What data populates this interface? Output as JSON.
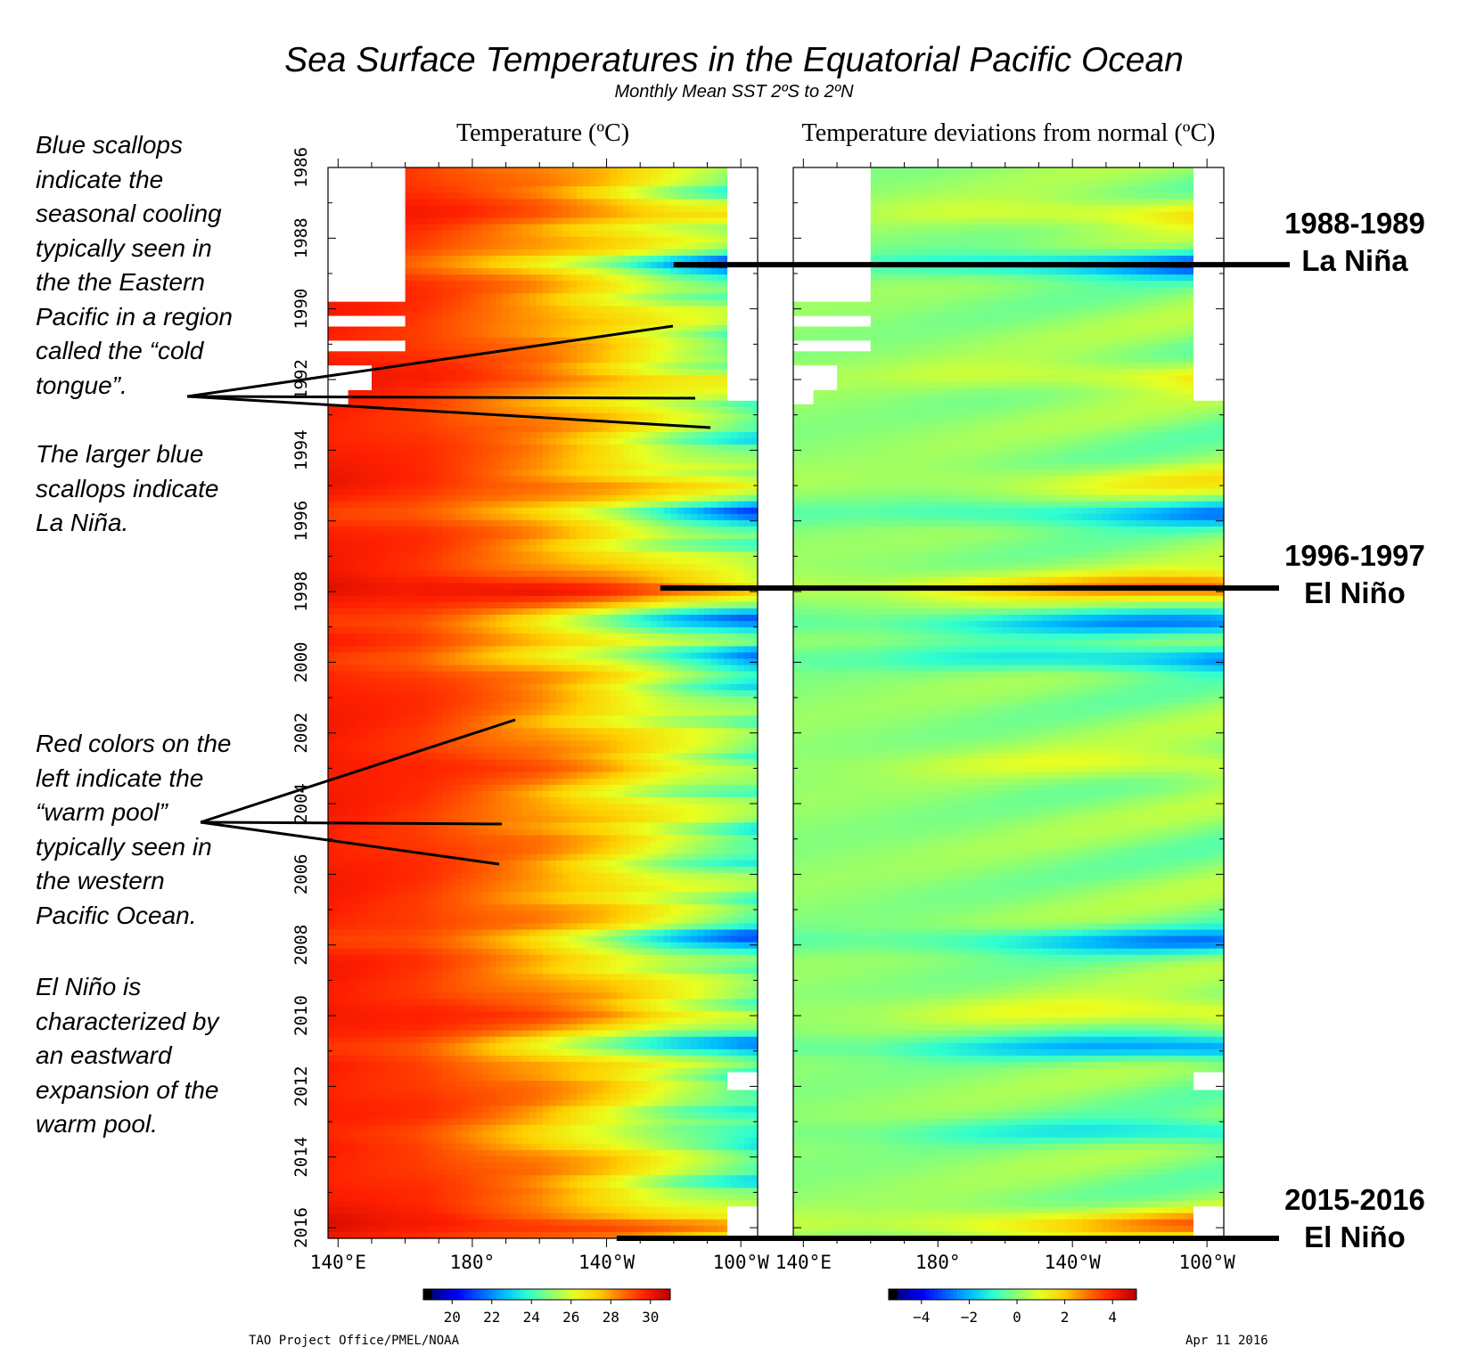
{
  "title": "Sea Surface Temperatures in the Equatorial Pacific Ocean",
  "subtitle": "Monthly Mean SST 2ºS to 2ºN",
  "notes": {
    "cold_tongue": [
      "Blue scallops",
      "indicate the",
      "seasonal cooling",
      "typically seen in",
      "the the Eastern",
      "Pacific in a region",
      "called the “cold",
      "tongue”."
    ],
    "la_nina": [
      "The larger blue",
      "scallops indicate",
      "La Niña."
    ],
    "warm_pool": [
      "Red colors on the",
      "left indicate the",
      "“warm pool”",
      "typically seen in",
      "the western",
      "Pacific Ocean."
    ],
    "el_nino": [
      "El Niño is",
      "characterized by",
      "an eastward",
      "expansion of the",
      "warm pool."
    ]
  },
  "events": [
    {
      "years": "1988-1989",
      "name": "La Niña",
      "year_value": 1988.75
    },
    {
      "years": "1996-1997",
      "name": "El Niño",
      "year_value": 1997.9
    },
    {
      "years": "2015-2016",
      "name": "El Niño",
      "year_value": 2016.3
    }
  ],
  "credit_left": "TAO Project Office/PMEL/NOAA",
  "credit_right": "Apr 11 2016",
  "colors": {
    "scale": [
      "#000000",
      "#00008f",
      "#0000ff",
      "#0060ff",
      "#00bfff",
      "#30ffcf",
      "#90ff70",
      "#e8ff20",
      "#ffd000",
      "#ff7000",
      "#ff2000",
      "#c00000"
    ],
    "annotation_line": "#000000"
  },
  "chart_data": [
    {
      "type": "heatmap",
      "title": "Temperature (ºC)",
      "x_ticks": [
        "140°E",
        "180°",
        "140°W",
        "100°W"
      ],
      "x_tick_values": [
        140,
        180,
        220,
        260
      ],
      "xlim": [
        137,
        265
      ],
      "y_ticks": [
        "1986",
        "1988",
        "1990",
        "1992",
        "1994",
        "1996",
        "1998",
        "2000",
        "2002",
        "2004",
        "2006",
        "2008",
        "2010",
        "2012",
        "2014",
        "2016"
      ],
      "ylim": [
        1986,
        2016.3
      ],
      "colorbar_ticks": [
        "20",
        "22",
        "24",
        "26",
        "28",
        "30"
      ],
      "colorbar_range": [
        19,
        31
      ],
      "base_profile": {
        "lon": [
          137,
          165,
          180,
          200,
          220,
          240,
          265
        ],
        "value": [
          29.9,
          29.5,
          29.0,
          28.3,
          27.3,
          26.0,
          24.8
        ]
      },
      "cold_events": [
        {
          "year": 1988.75,
          "amp": 2.6
        },
        {
          "year": 1995.8,
          "amp": 1.8
        },
        {
          "year": 1998.9,
          "amp": 2.2
        },
        {
          "year": 1999.9,
          "amp": 2.0
        },
        {
          "year": 2007.9,
          "amp": 2.0
        },
        {
          "year": 2010.9,
          "amp": 2.2
        },
        {
          "year": 2013.3,
          "amp": 1.4
        }
      ],
      "warm_events": [
        {
          "year": 1987.3,
          "amp": 1.4
        },
        {
          "year": 1991.9,
          "amp": 1.2
        },
        {
          "year": 1994.9,
          "amp": 1.0
        },
        {
          "year": 1997.9,
          "amp": 2.8
        },
        {
          "year": 2002.9,
          "amp": 1.0
        },
        {
          "year": 2009.9,
          "amp": 1.2
        },
        {
          "year": 2015.9,
          "amp": 2.4
        }
      ]
    },
    {
      "type": "heatmap",
      "title": "Temperature deviations from normal (ºC)",
      "x_ticks": [
        "140°E",
        "180°",
        "140°W",
        "100°W"
      ],
      "x_tick_values": [
        140,
        180,
        220,
        260
      ],
      "xlim": [
        137,
        265
      ],
      "y_ticks": [
        "1986",
        "1988",
        "1990",
        "1992",
        "1994",
        "1996",
        "1998",
        "2000",
        "2002",
        "2004",
        "2006",
        "2008",
        "2010",
        "2012",
        "2014",
        "2016"
      ],
      "ylim": [
        1986,
        2016.3
      ],
      "colorbar_ticks": [
        "−4",
        "−2",
        "0",
        "2",
        "4"
      ],
      "colorbar_range": [
        -5,
        5
      ]
    }
  ]
}
